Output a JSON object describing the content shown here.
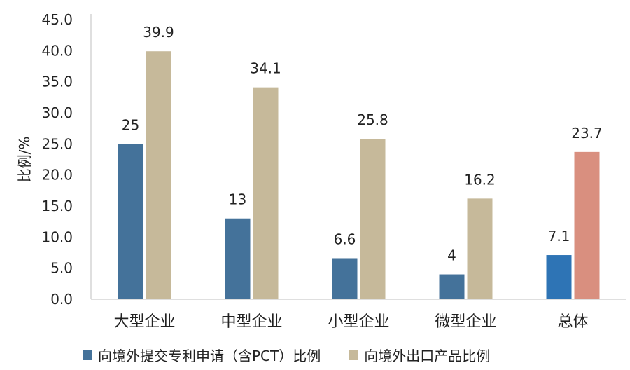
{
  "chart_data": {
    "type": "bar",
    "categories": [
      "大型企业",
      "中型企业",
      "小型企业",
      "微型企业",
      "总体"
    ],
    "series": [
      {
        "name": "向境外提交专利申请（含PCT）比例",
        "values": [
          25,
          13,
          6.6,
          4,
          7.1
        ],
        "labels": [
          "25",
          "13",
          "6.6",
          "4",
          "7.1"
        ],
        "color": "#44729a",
        "highlight_color": "#2e74b5"
      },
      {
        "name": "向境外出口产品比例",
        "values": [
          39.9,
          34.1,
          25.8,
          16.2,
          23.7
        ],
        "labels": [
          "39.9",
          "34.1",
          "25.8",
          "16.2",
          "23.7"
        ],
        "color": "#c6b99a",
        "highlight_color": "#d98f7f"
      }
    ],
    "highlight_category": "总体",
    "title": "",
    "xlabel": "",
    "ylabel": "比例/%",
    "ylim": [
      0,
      45
    ],
    "yticks": [
      "0.0",
      "5.0",
      "10.0",
      "15.0",
      "20.0",
      "25.0",
      "30.0",
      "35.0",
      "40.0",
      "45.0"
    ],
    "grid": false,
    "legend_position": "bottom"
  }
}
